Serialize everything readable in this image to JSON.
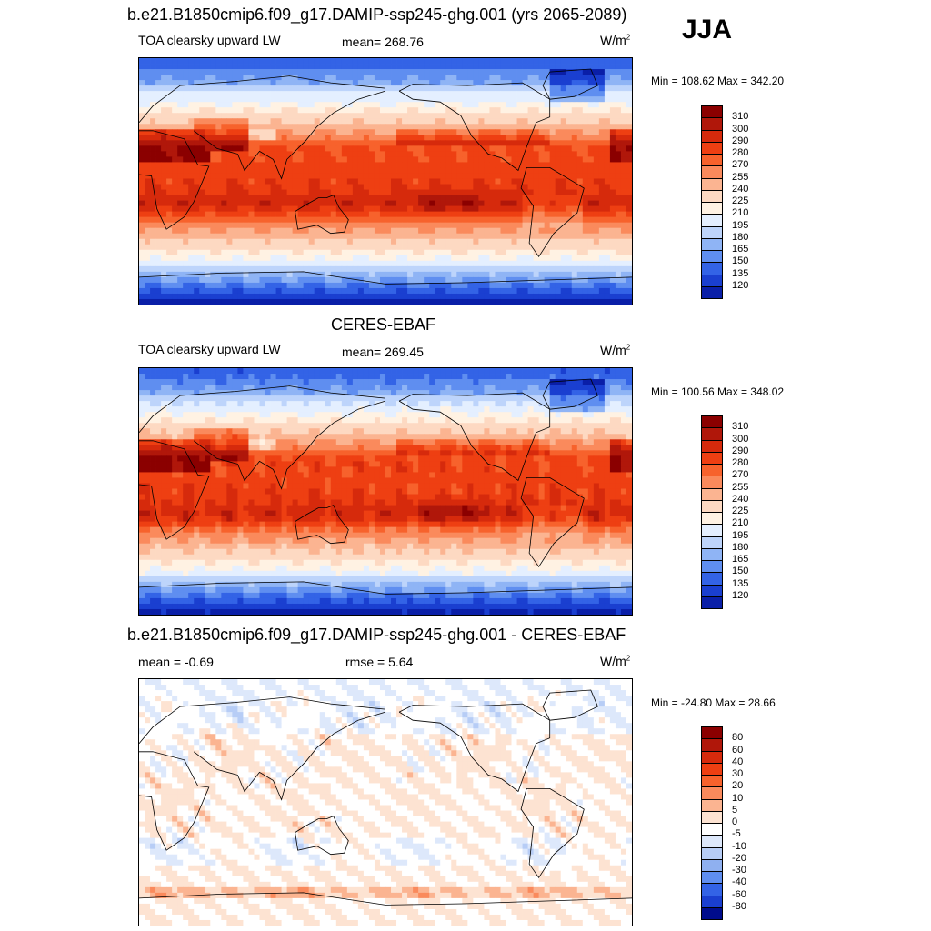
{
  "season": "JJA",
  "panels": [
    {
      "title": "b.e21.B1850cmip6.f09_g17.DAMIP-ssp245-ghg.001 (yrs 2065-2089)",
      "variable": "TOA clearsky upward LW",
      "stat": "mean= 268.76",
      "units": "W/m",
      "units_sup": "2",
      "minmax": "Min = 108.62 Max = 342.20",
      "kind": "field",
      "colorbar": {
        "labels": [
          "310",
          "300",
          "290",
          "280",
          "270",
          "255",
          "240",
          "225",
          "210",
          "195",
          "180",
          "165",
          "150",
          "135",
          "120"
        ],
        "colors": [
          "#8b0000",
          "#b0170a",
          "#d62a0c",
          "#ee3f12",
          "#f7622c",
          "#fa8a5c",
          "#fbb491",
          "#fdd9c2",
          "#fff2e3",
          "#e4efff",
          "#bdd4fb",
          "#8fb4f5",
          "#5f8ef0",
          "#3363e6",
          "#1a3fd0",
          "#0a1fa8"
        ]
      }
    },
    {
      "title": "CERES-EBAF",
      "variable": "TOA clearsky upward LW",
      "stat": "mean= 269.45",
      "units": "W/m",
      "units_sup": "2",
      "minmax": "Min = 100.56 Max = 348.02",
      "kind": "field",
      "colorbar": {
        "labels": [
          "310",
          "300",
          "290",
          "280",
          "270",
          "255",
          "240",
          "225",
          "210",
          "195",
          "180",
          "165",
          "150",
          "135",
          "120"
        ],
        "colors": [
          "#8b0000",
          "#b0170a",
          "#d62a0c",
          "#ee3f12",
          "#f7622c",
          "#fa8a5c",
          "#fbb491",
          "#fdd9c2",
          "#fff2e3",
          "#e4efff",
          "#bdd4fb",
          "#8fb4f5",
          "#5f8ef0",
          "#3363e6",
          "#1a3fd0",
          "#0a1fa8"
        ]
      }
    },
    {
      "title": "b.e21.B1850cmip6.f09_g17.DAMIP-ssp245-ghg.001 - CERES-EBAF",
      "stat_left": "mean =  -0.69",
      "stat": "rmse =   5.64",
      "units": "W/m",
      "units_sup": "2",
      "minmax": "Min = -24.80 Max =  28.66",
      "kind": "diff",
      "colorbar": {
        "labels": [
          "80",
          "60",
          "40",
          "30",
          "20",
          "10",
          "5",
          "0",
          "-5",
          "-10",
          "-20",
          "-30",
          "-40",
          "-60",
          "-80"
        ],
        "colors": [
          "#8b0000",
          "#b0170a",
          "#d62a0c",
          "#ee3f12",
          "#f7622c",
          "#fa8a5c",
          "#fbb491",
          "#fde3d2",
          "#ffffff",
          "#dde8fb",
          "#b7cdf6",
          "#8fb0f0",
          "#5f8ef0",
          "#3363e6",
          "#1a3fd0",
          "#000c8c"
        ]
      }
    }
  ],
  "chart_data": [
    {
      "type": "heatmap",
      "title": "b.e21.B1850cmip6.f09_g17.DAMIP-ssp245-ghg.001 (yrs 2065-2089)",
      "subtitle": "TOA clearsky upward LW",
      "units": "W/m2",
      "season": "JJA",
      "mean": 268.76,
      "min": 108.62,
      "max": 342.2,
      "contour_levels": [
        120,
        135,
        150,
        165,
        180,
        195,
        210,
        225,
        240,
        255,
        270,
        280,
        290,
        300,
        310
      ]
    },
    {
      "type": "heatmap",
      "title": "CERES-EBAF",
      "subtitle": "TOA clearsky upward LW",
      "units": "W/m2",
      "season": "JJA",
      "mean": 269.45,
      "min": 100.56,
      "max": 348.02,
      "contour_levels": [
        120,
        135,
        150,
        165,
        180,
        195,
        210,
        225,
        240,
        255,
        270,
        280,
        290,
        300,
        310
      ]
    },
    {
      "type": "heatmap",
      "title": "b.e21.B1850cmip6.f09_g17.DAMIP-ssp245-ghg.001 - CERES-EBAF",
      "units": "W/m2",
      "season": "JJA",
      "mean": -0.69,
      "rmse": 5.64,
      "min": -24.8,
      "max": 28.66,
      "contour_levels": [
        -80,
        -60,
        -40,
        -30,
        -20,
        -10,
        -5,
        0,
        5,
        10,
        20,
        30,
        40,
        60,
        80
      ]
    }
  ]
}
